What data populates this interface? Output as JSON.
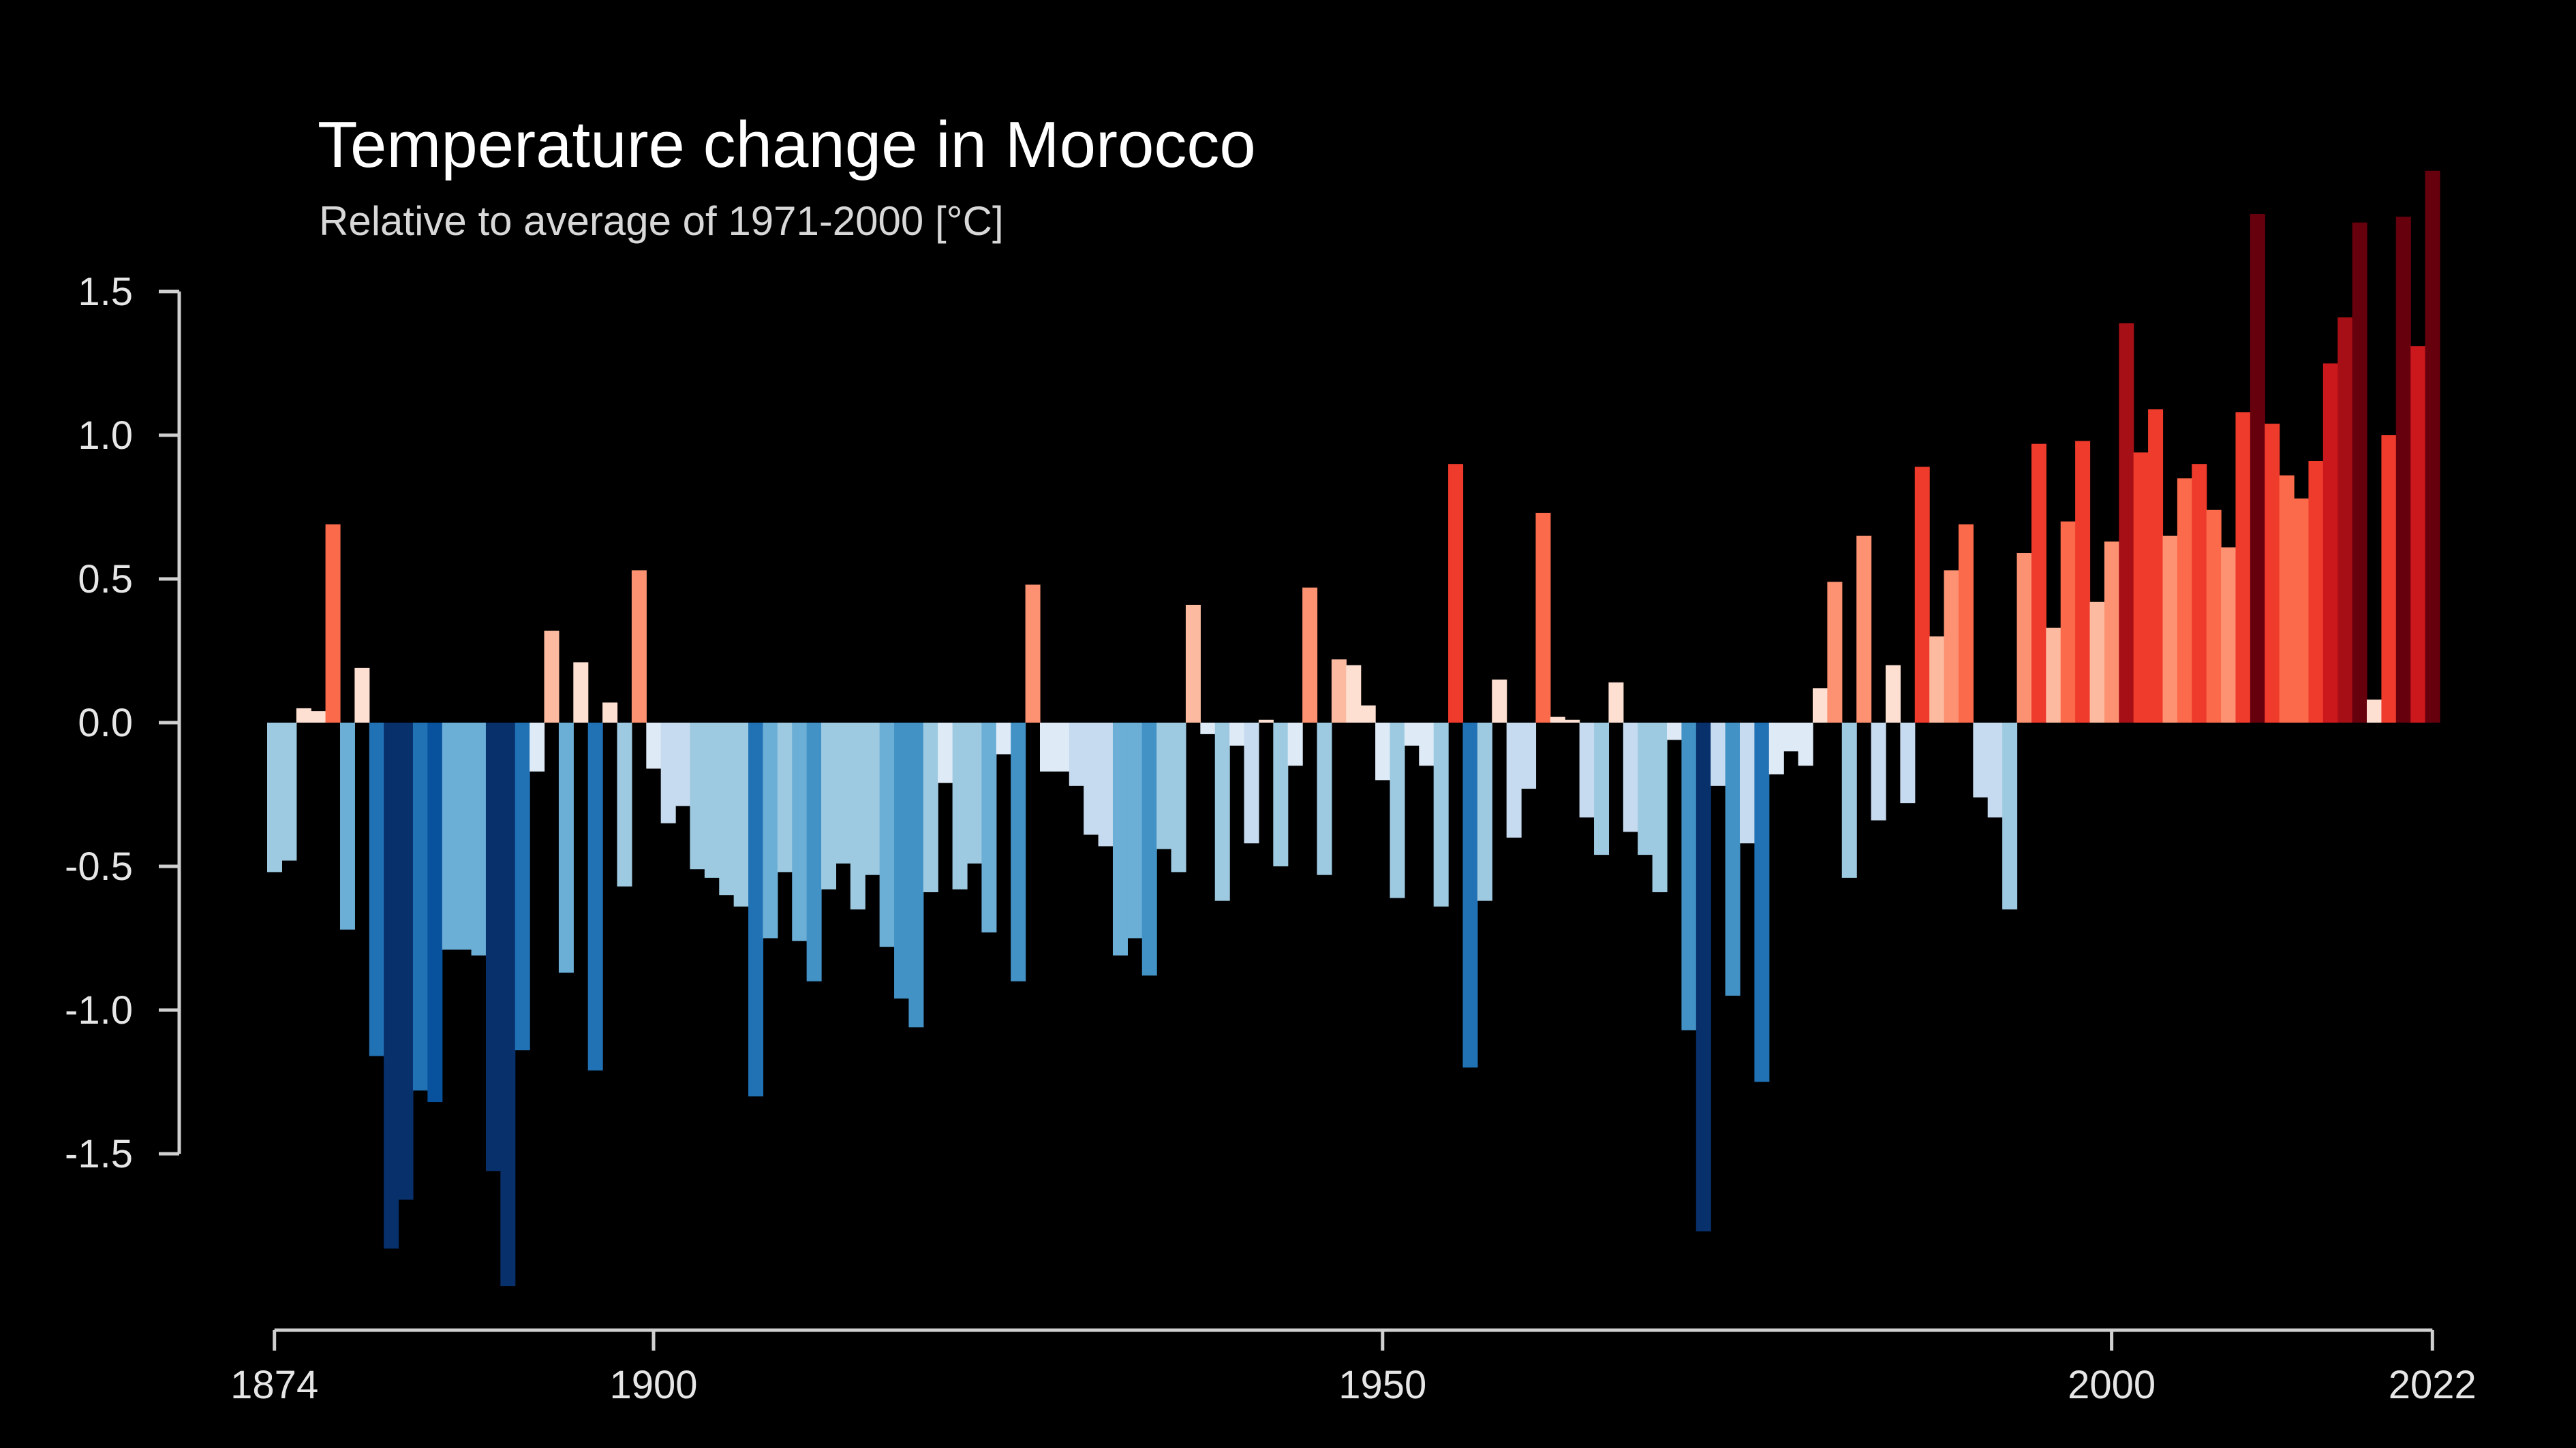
{
  "chart_data": {
    "type": "bar",
    "title": "Temperature change in Morocco",
    "subtitle": "Relative to average of 1971-2000  [°C]",
    "xlabel": "",
    "ylabel": "",
    "x_start": 1874,
    "x_end": 2022,
    "xticks": [
      1874,
      1900,
      1950,
      2000,
      2022
    ],
    "yticks": [
      -1.5,
      -1.0,
      -0.5,
      0.0,
      0.5,
      1.0,
      1.5
    ],
    "ytick_labels": [
      "-1.5",
      "-1.0",
      "-0.5",
      "0.0",
      "0.5",
      "1.0",
      "1.5"
    ],
    "ylim": [
      -2.0,
      1.95
    ],
    "grid": false,
    "legend": "none",
    "colors": {
      "background": "#000000",
      "axis": "#d0d0d0",
      "scale": [
        "#08306b",
        "#08519c",
        "#2171b5",
        "#4292c6",
        "#6baed6",
        "#9ecae1",
        "#c6dbef",
        "#deebf7",
        "#fee0d2",
        "#fcbba1",
        "#fc9272",
        "#fb6a4a",
        "#ef3b2c",
        "#cb181d",
        "#a50f15",
        "#67000d"
      ]
    },
    "years": [
      1874,
      1875,
      1876,
      1877,
      1878,
      1879,
      1880,
      1881,
      1882,
      1883,
      1884,
      1885,
      1886,
      1887,
      1888,
      1889,
      1890,
      1891,
      1892,
      1893,
      1894,
      1895,
      1896,
      1897,
      1898,
      1899,
      1900,
      1901,
      1902,
      1903,
      1904,
      1905,
      1906,
      1907,
      1908,
      1909,
      1910,
      1911,
      1912,
      1913,
      1914,
      1915,
      1916,
      1917,
      1918,
      1919,
      1920,
      1921,
      1922,
      1923,
      1924,
      1925,
      1926,
      1927,
      1928,
      1929,
      1930,
      1931,
      1932,
      1933,
      1934,
      1935,
      1936,
      1937,
      1938,
      1939,
      1940,
      1941,
      1942,
      1943,
      1944,
      1945,
      1946,
      1947,
      1948,
      1949,
      1950,
      1951,
      1952,
      1953,
      1954,
      1955,
      1956,
      1957,
      1958,
      1959,
      1960,
      1961,
      1962,
      1963,
      1964,
      1965,
      1966,
      1967,
      1968,
      1969,
      1970,
      1971,
      1972,
      1973,
      1974,
      1975,
      1976,
      1977,
      1978,
      1979,
      1980,
      1981,
      1982,
      1983,
      1984,
      1985,
      1986,
      1987,
      1988,
      1989,
      1990,
      1991,
      1992,
      1993,
      1994,
      1995,
      1996,
      1997,
      1998,
      1999,
      2000,
      2001,
      2002,
      2003,
      2004,
      2005,
      2006,
      2007,
      2008,
      2009,
      2010,
      2011,
      2012,
      2013,
      2014,
      2015,
      2016,
      2017,
      2018,
      2019,
      2020,
      2021,
      2022
    ],
    "values": [
      -0.52,
      -0.48,
      0.05,
      0.04,
      0.69,
      -0.72,
      0.19,
      -1.16,
      -1.83,
      -1.66,
      -1.28,
      -1.32,
      -0.79,
      -0.79,
      -0.81,
      -1.56,
      -1.96,
      -1.14,
      -0.17,
      0.32,
      -0.87,
      0.21,
      -1.21,
      0.07,
      -0.57,
      0.53,
      -0.16,
      -0.35,
      -0.29,
      -0.51,
      -0.54,
      -0.6,
      -0.64,
      -1.3,
      -0.75,
      -0.52,
      -0.76,
      -0.9,
      -0.58,
      -0.49,
      -0.65,
      -0.53,
      -0.78,
      -0.96,
      -1.06,
      -0.59,
      -0.21,
      -0.58,
      -0.49,
      -0.73,
      -0.11,
      -0.9,
      0.48,
      -0.17,
      -0.17,
      -0.22,
      -0.39,
      -0.43,
      -0.81,
      -0.75,
      -0.88,
      -0.44,
      -0.52,
      0.41,
      -0.04,
      -0.62,
      -0.08,
      -0.42,
      0.01,
      -0.5,
      -0.15,
      0.47,
      -0.53,
      0.22,
      0.2,
      0.06,
      -0.2,
      -0.61,
      -0.08,
      -0.15,
      -0.64,
      0.9,
      -1.2,
      -0.62,
      0.15,
      -0.4,
      -0.23,
      0.73,
      0.02,
      0.01,
      -0.33,
      -0.46,
      0.14,
      -0.38,
      -0.46,
      -0.59,
      -0.06,
      -1.07,
      -1.77,
      -0.22,
      -0.95,
      -0.42,
      -1.25,
      -0.18,
      -0.1,
      -0.15,
      0.12,
      0.49,
      -0.54,
      0.65,
      -0.34,
      0.2,
      -0.28,
      0.89,
      0.3,
      0.53,
      0.69,
      -0.26,
      -0.33,
      -0.65,
      0.59,
      0.97,
      0.33,
      0.7,
      0.98,
      0.42,
      0.63,
      1.39,
      0.94,
      1.09,
      0.65,
      0.85,
      0.9,
      0.74,
      0.61,
      1.08,
      1.77,
      1.04,
      0.86,
      0.78,
      0.91,
      1.25,
      1.41,
      1.74,
      0.08,
      1.0,
      1.76,
      1.31,
      1.92
    ]
  }
}
